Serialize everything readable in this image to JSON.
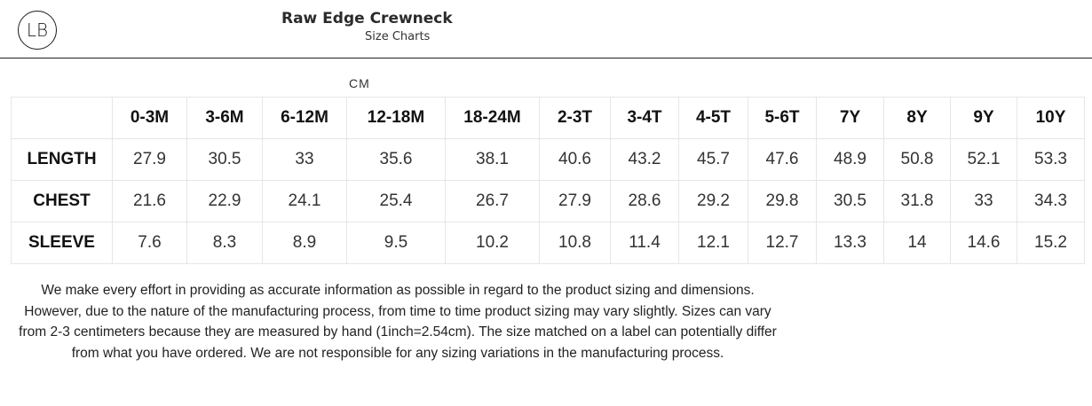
{
  "logo": {
    "text": "LB"
  },
  "header": {
    "title": "Raw Edge Crewneck",
    "subtitle": "Size Charts"
  },
  "unit_label": "CM",
  "table": {
    "columns": [
      "0-3M",
      "3-6M",
      "6-12M",
      "12-18M",
      "18-24M",
      "2-3T",
      "3-4T",
      "4-5T",
      "5-6T",
      "7Y",
      "8Y",
      "9Y",
      "10Y"
    ],
    "rows": [
      {
        "label": "LENGTH",
        "values": [
          "27.9",
          "30.5",
          "33",
          "35.6",
          "38.1",
          "40.6",
          "43.2",
          "45.7",
          "47.6",
          "48.9",
          "50.8",
          "52.1",
          "53.3"
        ]
      },
      {
        "label": "CHEST",
        "values": [
          "21.6",
          "22.9",
          "24.1",
          "25.4",
          "26.7",
          "27.9",
          "28.6",
          "29.2",
          "29.8",
          "30.5",
          "31.8",
          "33",
          "34.3"
        ]
      },
      {
        "label": "SLEEVE",
        "values": [
          "7.6",
          "8.3",
          "8.9",
          "9.5",
          "10.2",
          "10.8",
          "11.4",
          "12.1",
          "12.7",
          "13.3",
          "14",
          "14.6",
          "15.2"
        ]
      }
    ]
  },
  "disclaimer": "We make every effort in providing as accurate information as possible in regard to the product sizing and dimensions. However, due to the nature of the manufacturing process, from time to time product sizing may vary slightly. Sizes can vary from 2-3 centimeters because they are measured by hand (1inch=2.54cm). The size matched on a label can potentially differ from what you have ordered. We are not responsible for any sizing variations in the manufacturing process."
}
